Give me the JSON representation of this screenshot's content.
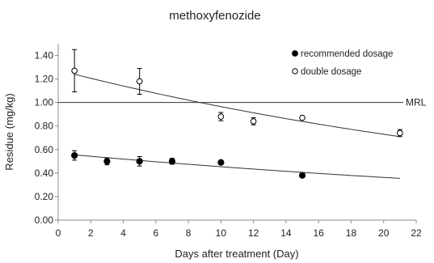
{
  "chart_data": {
    "type": "scatter",
    "title": "methoxyfenozide",
    "xlabel": "Days after treatment (Day)",
    "ylabel": "Residue (mg/kg)",
    "xlim": [
      0,
      22
    ],
    "ylim": [
      0,
      1.5
    ],
    "x_ticks": [
      "0",
      "2",
      "4",
      "6",
      "8",
      "10",
      "12",
      "14",
      "16",
      "18",
      "20",
      "22"
    ],
    "y_ticks": [
      "0.00",
      "0.20",
      "0.40",
      "0.60",
      "0.80",
      "1.00",
      "1.20",
      "1.40"
    ],
    "grid": false,
    "legend_position": "top-right",
    "mrl": {
      "label": "MRL",
      "value": 1.0
    },
    "series": [
      {
        "name": "recommended dosage",
        "marker": "filled-circle",
        "color": "#000000",
        "points": [
          {
            "x": 1,
            "y": 0.55,
            "err": 0.04
          },
          {
            "x": 3,
            "y": 0.5,
            "err": 0.03
          },
          {
            "x": 5,
            "y": 0.5,
            "err": 0.04
          },
          {
            "x": 7,
            "y": 0.5,
            "err": 0.025
          },
          {
            "x": 10,
            "y": 0.49,
            "err": 0
          },
          {
            "x": 15,
            "y": 0.38,
            "err": 0
          }
        ],
        "trend": {
          "x": [
            1,
            21
          ],
          "y": [
            0.555,
            0.355
          ]
        }
      },
      {
        "name": "double dosage",
        "marker": "open-circle",
        "color": "#000000",
        "points": [
          {
            "x": 1,
            "y": 1.27,
            "err": 0.18
          },
          {
            "x": 5,
            "y": 1.18,
            "err": 0.11
          },
          {
            "x": 10,
            "y": 0.88,
            "err": 0.035
          },
          {
            "x": 12,
            "y": 0.84,
            "err": 0.03
          },
          {
            "x": 15,
            "y": 0.87,
            "err": 0
          },
          {
            "x": 21,
            "y": 0.74,
            "err": 0.03
          }
        ],
        "trend": {
          "x": [
            1,
            21
          ],
          "y": [
            1.24,
            0.71
          ]
        }
      }
    ]
  }
}
